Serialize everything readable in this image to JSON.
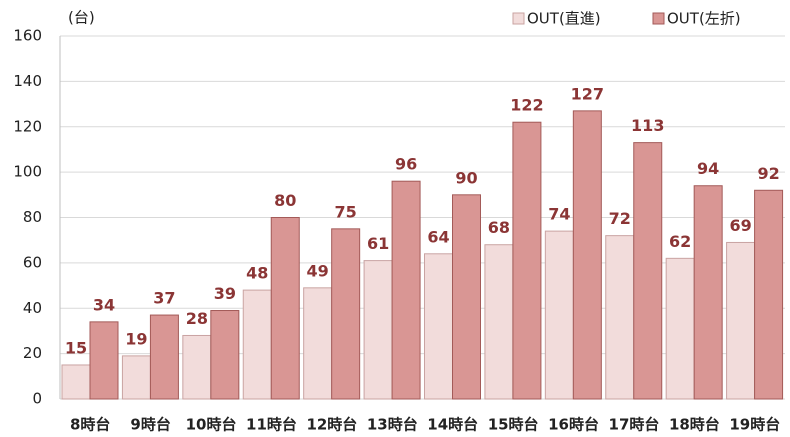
{
  "chart_data": {
    "type": "bar",
    "ylabel": "(台)",
    "categories": [
      "8時台",
      "9時台",
      "10時台",
      "11時台",
      "12時台",
      "13時台",
      "14時台",
      "15時台",
      "16時台",
      "17時台",
      "18時台",
      "19時台"
    ],
    "series": [
      {
        "name": "OUT(直進)",
        "color": "#f2dcdb",
        "values": [
          15,
          19,
          28,
          48,
          49,
          61,
          64,
          68,
          74,
          72,
          62,
          69
        ]
      },
      {
        "name": "OUT(左折)",
        "color": "#d99694",
        "values": [
          34,
          37,
          39,
          80,
          75,
          96,
          90,
          122,
          127,
          113,
          94,
          92
        ]
      }
    ],
    "ylim": [
      0,
      160
    ],
    "yticks": [
      0,
      20,
      40,
      60,
      80,
      100,
      120,
      140,
      160
    ],
    "grid": true,
    "legend": "top-right"
  }
}
